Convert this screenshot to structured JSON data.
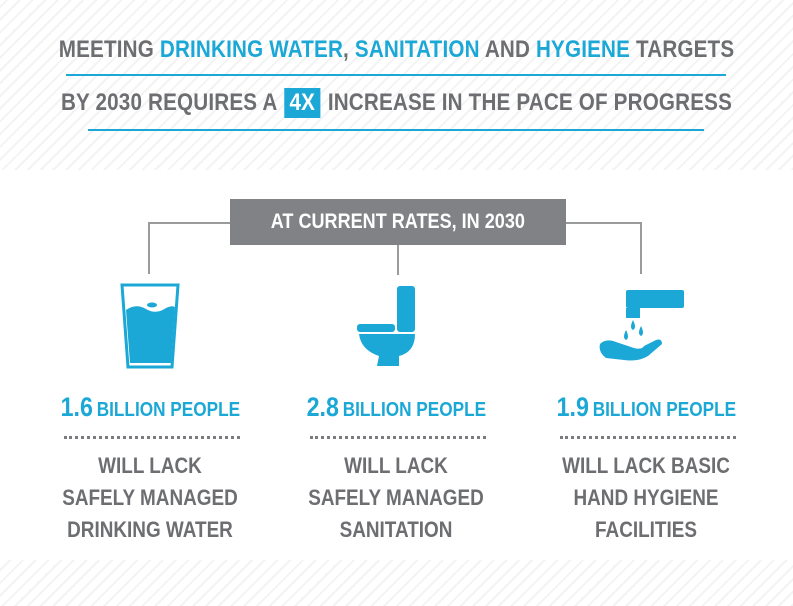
{
  "headline": {
    "line1": {
      "part1": "MEETING ",
      "highlight1": "DRINKING WATER",
      "part2": ", ",
      "highlight2": "SANITATION",
      "part3": " AND ",
      "highlight3": "HYGIENE",
      "part4": " TARGETS"
    },
    "line2": {
      "part1": "BY 2030 REQUIRES A ",
      "badge": "4X",
      "part2": " INCREASE IN THE PACE OF PROGRESS"
    }
  },
  "banner": {
    "label": "AT CURRENT RATES, IN 2030"
  },
  "items": [
    {
      "icon": "water-glass-icon",
      "number": "1.6",
      "unit": "BILLION PEOPLE",
      "lines": [
        "WILL LACK",
        "SAFELY MANAGED",
        "DRINKING WATER"
      ]
    },
    {
      "icon": "toilet-icon",
      "number": "2.8",
      "unit": "BILLION PEOPLE",
      "lines": [
        "WILL LACK",
        "SAFELY MANAGED",
        "SANITATION"
      ]
    },
    {
      "icon": "handwashing-icon",
      "number": "1.9",
      "unit": "BILLION PEOPLE",
      "lines": [
        "WILL LACK BASIC",
        "HAND HYGIENE",
        "FACILITIES"
      ]
    }
  ],
  "colors": {
    "accent": "#1ba8d6",
    "text": "#6d6e71",
    "banner": "#808285"
  }
}
